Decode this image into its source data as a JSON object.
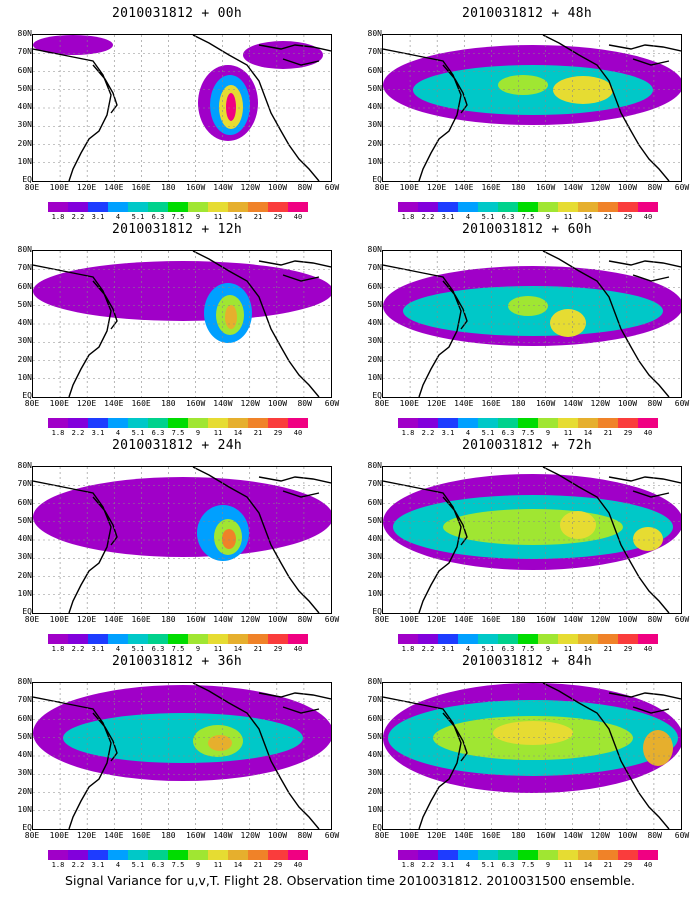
{
  "panels": [
    {
      "title": "2010031812 + 00h"
    },
    {
      "title": "2010031812 + 48h"
    },
    {
      "title": "2010031812 + 12h"
    },
    {
      "title": "2010031812 + 60h"
    },
    {
      "title": "2010031812 + 24h"
    },
    {
      "title": "2010031812 + 72h"
    },
    {
      "title": "2010031812 + 36h"
    },
    {
      "title": "2010031812 + 84h"
    }
  ],
  "y_labels": [
    "80N",
    "70N",
    "60N",
    "50N",
    "40N",
    "30N",
    "20N",
    "10N",
    "EQ"
  ],
  "x_labels": [
    "80E",
    "100E",
    "120E",
    "140E",
    "160E",
    "180",
    "160W",
    "140W",
    "120W",
    "100W",
    "80W",
    "60W"
  ],
  "colorbar": {
    "colors": [
      "#a000c8",
      "#8200dc",
      "#1e3cff",
      "#00a0ff",
      "#00c8c8",
      "#00d28c",
      "#00dc00",
      "#a0e632",
      "#e6dc32",
      "#e6af2d",
      "#f08228",
      "#fa3c3c",
      "#f00082"
    ],
    "labels": [
      "1.8",
      "2.2",
      "3.1",
      "4",
      "5.1",
      "6.3",
      "7.5",
      "9",
      "11",
      "14",
      "21",
      "29",
      "40"
    ]
  },
  "caption": "Signal Variance for u,v,T. Flight 28. Observation time 2010031812. 2010031500 ensemble."
}
